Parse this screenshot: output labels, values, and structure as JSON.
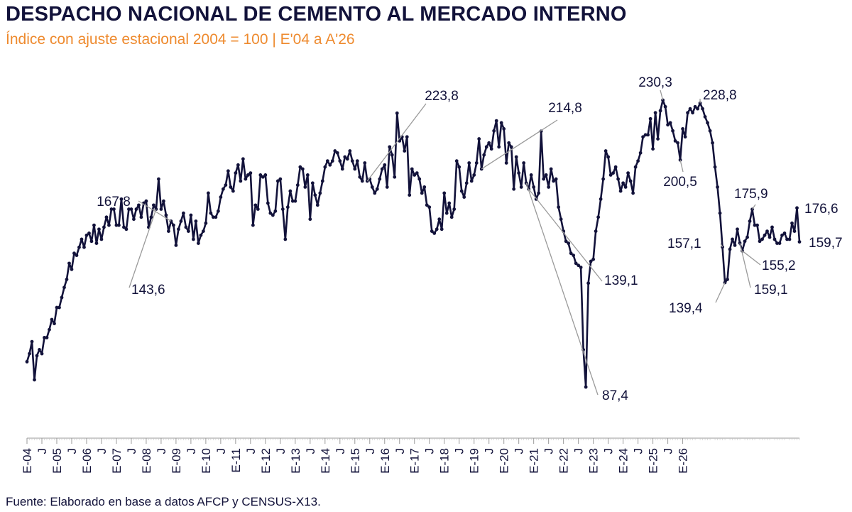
{
  "header": {
    "title": "DESPACHO NACIONAL DE CEMENTO AL MERCADO INTERNO",
    "subtitle": "Índice con ajuste estacional 2004 = 100 | E'04 a A'26"
  },
  "footer": {
    "source": "Fuente: Elaborado en base a datos AFCP y CENSUS-X13."
  },
  "colors": {
    "line": "#12123a",
    "subtitle": "#ee8a2e",
    "leader": "#9a9a9a"
  },
  "chart_data": {
    "type": "line",
    "title": "DESPACHO NACIONAL DE CEMENTO AL MERCADO INTERNO",
    "subtitle": "Índice con ajuste estacional 2004 = 100 | E'04 a A'26",
    "xlabel": "",
    "ylabel": "",
    "ylim": [
      75,
      240
    ],
    "grid": false,
    "legend": "none",
    "x_start": "E-04",
    "x_end": "A-26",
    "x_tick_labels": [
      "E-04",
      "J",
      "E-05",
      "J",
      "E-06",
      "J",
      "E-07",
      "J",
      "E-08",
      "J",
      "E-09",
      "J",
      "E-10",
      "J",
      "E-11",
      "J",
      "E-12",
      "J",
      "E-13",
      "J",
      "E-14",
      "J",
      "E-15",
      "J",
      "E-16",
      "J",
      "E-17",
      "J",
      "E-18",
      "J",
      "E-19",
      "J",
      "E-20",
      "J",
      "E-21",
      "J",
      "E-22",
      "J",
      "E-23",
      "J",
      "E-24",
      "J",
      "E-25",
      "J",
      "E-26"
    ],
    "series": [
      {
        "values": [
          100,
          104,
          110,
          91,
          103,
          106,
          104,
          112,
          112,
          116,
          121,
          119,
          127,
          127,
          132,
          137,
          141,
          149,
          146,
          154,
          153,
          157,
          161,
          157,
          163,
          164,
          160,
          168,
          159,
          166,
          161,
          167,
          172,
          168,
          176,
          176,
          168,
          168,
          181,
          167,
          166,
          176,
          176,
          171,
          176,
          178,
          172,
          179,
          180,
          167,
          172,
          178,
          176,
          191,
          176,
          180,
          173,
          165,
          170,
          168,
          158,
          166,
          170,
          174,
          167,
          165,
          173,
          161,
          170,
          159,
          163,
          165,
          169,
          184,
          174,
          172,
          172,
          175,
          182,
          186,
          188,
          195,
          187,
          185,
          194,
          198,
          190,
          201,
          191,
          193,
          194,
          168,
          178,
          176,
          193,
          192,
          193,
          179,
          174,
          173,
          175,
          190,
          191,
          176,
          161,
          177,
          185,
          180,
          180,
          188,
          197,
          196,
          187,
          193,
          171,
          189,
          183,
          178,
          184,
          190,
          197,
          200,
          198,
          200,
          205,
          204,
          200,
          196,
          202,
          201,
          205,
          200,
          196,
          200,
          192,
          190,
          199,
          190,
          191,
          187,
          184,
          186,
          191,
          196,
          198,
          187,
          207,
          203,
          192,
          223.8,
          210,
          212,
          205,
          212,
          183,
          196,
          193,
          194,
          191,
          184,
          187,
          178,
          177,
          165,
          164,
          166,
          171,
          166,
          184,
          174,
          179,
          172,
          176,
          200,
          197,
          185,
          182,
          189,
          199,
          190,
          193,
          199,
          211,
          196,
          203,
          207,
          209,
          206,
          215,
          220,
          207,
          219,
          216,
          199,
          209,
          207,
          186,
          202,
          194,
          187,
          199,
          189,
          186,
          193,
          187,
          181,
          184,
          214.8,
          191,
          193,
          187,
          196,
          190,
          191,
          177,
          171,
          165,
          160,
          159,
          154,
          153,
          149,
          148,
          147,
          106,
          87.4,
          139.1,
          150,
          151,
          165,
          172,
          181,
          191,
          205,
          202,
          193,
          194,
          197,
          191,
          185,
          189,
          187,
          194,
          190,
          184,
          197,
          200,
          204,
          212,
          213,
          213,
          221,
          206,
          224,
          211,
          225,
          230.3,
          227,
          218,
          219,
          215,
          210,
          209,
          200.5,
          216,
          212,
          224,
          226,
          224,
          227,
          226,
          228.8,
          226,
          222,
          219,
          215,
          209,
          197,
          187,
          174,
          157.1,
          139.4,
          141,
          156,
          161,
          158,
          166,
          159.1,
          155.2,
          160,
          162,
          170,
          175.9,
          168,
          168,
          160,
          161,
          163,
          165,
          162,
          167,
          161,
          159,
          159,
          163,
          164,
          161,
          161,
          169,
          165,
          176.6,
          159.7
        ]
      }
    ],
    "annotations": [
      {
        "text": "167,8"
      },
      {
        "text": "143,6"
      },
      {
        "text": "223,8"
      },
      {
        "text": "214,8"
      },
      {
        "text": "139,1"
      },
      {
        "text": "87,4"
      },
      {
        "text": "230,3"
      },
      {
        "text": "200,5"
      },
      {
        "text": "228,8"
      },
      {
        "text": "157,1"
      },
      {
        "text": "139,4"
      },
      {
        "text": "175,9"
      },
      {
        "text": "155,2"
      },
      {
        "text": "159,1"
      },
      {
        "text": "176,6"
      },
      {
        "text": "159,7"
      }
    ]
  }
}
